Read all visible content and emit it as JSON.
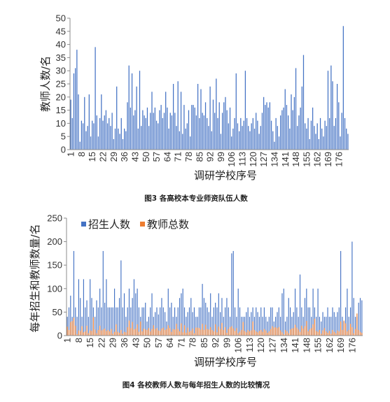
{
  "chart_data": [
    {
      "type": "bar",
      "caption": "图3 各高校本专业师资队伍人数",
      "xlabel": "调研学校序号",
      "ylabel": "教师人数/名",
      "ylim": [
        0,
        50
      ],
      "yticks": [
        0,
        5,
        10,
        15,
        20,
        25,
        30,
        35,
        40,
        45,
        50
      ],
      "xticks": [
        1,
        8,
        15,
        22,
        29,
        36,
        43,
        50,
        57,
        64,
        71,
        78,
        85,
        92,
        99,
        106,
        113,
        120,
        127,
        134,
        141,
        148,
        155,
        162,
        169,
        176
      ],
      "grid": false,
      "color": "#4472C4",
      "series": [
        {
          "values": [
            19,
            12,
            29,
            31,
            38,
            21,
            3,
            11,
            10,
            20,
            7,
            9,
            21,
            5,
            11,
            10,
            39,
            13,
            5,
            12,
            21,
            11,
            13,
            15,
            10,
            12,
            9,
            14,
            4,
            8,
            24,
            8,
            6,
            12,
            4,
            8,
            7,
            18,
            32,
            16,
            29,
            13,
            15,
            24,
            8,
            30,
            9,
            15,
            13,
            12,
            16,
            9,
            14,
            22,
            14,
            16,
            11,
            10,
            15,
            17,
            12,
            14,
            22,
            16,
            8,
            14,
            13,
            25,
            14,
            9,
            26,
            7,
            22,
            6,
            17,
            8,
            10,
            15,
            5,
            17,
            17,
            16,
            13,
            25,
            12,
            23,
            14,
            13,
            18,
            12,
            9,
            24,
            7,
            19,
            14,
            27,
            12,
            18,
            6,
            14,
            18,
            20,
            15,
            10,
            16,
            5,
            8,
            12,
            29,
            10,
            7,
            12,
            9,
            11,
            30,
            12,
            9,
            7,
            10,
            12,
            8,
            14,
            11,
            6,
            9,
            14,
            20,
            17,
            18,
            16,
            18,
            11,
            7,
            3,
            12,
            9,
            5,
            13,
            15,
            16,
            23,
            17,
            13,
            8,
            21,
            15,
            20,
            31,
            9,
            13,
            16,
            24,
            36,
            10,
            8,
            12,
            4,
            11,
            16,
            9,
            6,
            10,
            4,
            12,
            8,
            5,
            11,
            9,
            30,
            12,
            32,
            26,
            9,
            12,
            25,
            18,
            5,
            14,
            47,
            12,
            8,
            6
          ]
        }
      ]
    },
    {
      "type": "bar",
      "caption": "图4 各校教师人数与每年招生人数的比较情况",
      "xlabel": "调研学校序号",
      "ylabel": "每年招生和教师数量/名",
      "ylim": [
        0,
        250
      ],
      "yticks": [
        0,
        50,
        100,
        150,
        200,
        250
      ],
      "xticks": [
        1,
        8,
        15,
        22,
        29,
        36,
        43,
        50,
        57,
        64,
        71,
        78,
        85,
        92,
        99,
        106,
        113,
        120,
        127,
        134,
        141,
        148,
        155,
        162,
        169,
        176
      ],
      "grid": false,
      "legend": "top-left",
      "series": [
        {
          "name": "招生人数",
          "color": "#4472C4",
          "values": [
            40,
            60,
            85,
            40,
            180,
            60,
            40,
            120,
            80,
            40,
            120,
            60,
            75,
            40,
            120,
            80,
            60,
            40,
            75,
            60,
            100,
            60,
            180,
            70,
            120,
            60,
            60,
            60,
            60,
            100,
            60,
            60,
            80,
            160,
            60,
            90,
            40,
            60,
            100,
            60,
            80,
            120,
            90,
            100,
            60,
            40,
            60,
            60,
            70,
            30,
            40,
            60,
            90,
            40,
            50,
            60,
            45,
            60,
            80,
            60,
            50,
            30,
            100,
            60,
            70,
            40,
            60,
            40,
            60,
            80,
            90,
            100,
            60,
            40,
            50,
            60,
            80,
            50,
            60,
            40,
            40,
            60,
            60,
            110,
            80,
            70,
            60,
            50,
            90,
            40,
            60,
            70,
            60,
            90,
            50,
            80,
            40,
            60,
            80,
            60,
            40,
            175,
            180,
            60,
            40,
            100,
            60,
            40,
            40,
            40,
            50,
            60,
            40,
            50,
            60,
            40,
            60,
            50,
            40,
            60,
            40,
            60,
            40,
            30,
            40,
            60,
            60,
            30,
            40,
            50,
            60,
            40,
            90,
            100,
            30,
            40,
            80,
            60,
            40,
            50,
            100,
            60,
            40,
            130,
            60,
            40,
            80,
            100,
            60,
            60,
            40,
            100,
            60,
            40,
            100,
            40,
            30,
            50,
            40,
            40,
            60,
            40,
            40,
            60,
            50,
            40,
            50,
            60,
            180,
            40,
            30,
            60,
            100,
            40,
            60,
            200,
            80,
            40,
            40,
            70,
            80,
            75
          ]
        },
        {
          "name": "教师总数",
          "color": "#ED7D31",
          "values": [
            19,
            12,
            29,
            31,
            38,
            21,
            3,
            11,
            10,
            20,
            7,
            9,
            21,
            5,
            11,
            10,
            39,
            13,
            5,
            12,
            21,
            11,
            13,
            15,
            10,
            12,
            9,
            14,
            4,
            8,
            24,
            8,
            6,
            12,
            4,
            8,
            7,
            18,
            32,
            16,
            29,
            13,
            15,
            24,
            8,
            30,
            9,
            15,
            13,
            12,
            16,
            9,
            14,
            22,
            14,
            16,
            11,
            10,
            15,
            17,
            12,
            14,
            22,
            16,
            8,
            14,
            13,
            25,
            14,
            9,
            26,
            7,
            22,
            6,
            17,
            8,
            10,
            15,
            5,
            17,
            17,
            16,
            13,
            25,
            12,
            23,
            14,
            13,
            18,
            12,
            9,
            24,
            7,
            19,
            14,
            27,
            12,
            18,
            6,
            14,
            18,
            20,
            15,
            10,
            16,
            5,
            8,
            12,
            29,
            10,
            7,
            12,
            9,
            11,
            30,
            12,
            9,
            7,
            10,
            12,
            8,
            14,
            11,
            6,
            9,
            14,
            20,
            17,
            18,
            16,
            18,
            11,
            7,
            3,
            12,
            9,
            5,
            13,
            15,
            16,
            23,
            17,
            13,
            8,
            21,
            15,
            20,
            31,
            9,
            13,
            16,
            24,
            36,
            10,
            8,
            12,
            4,
            11,
            16,
            9,
            6,
            10,
            4,
            12,
            8,
            5,
            11,
            9,
            30,
            12,
            32,
            26,
            9,
            12,
            25,
            18,
            5,
            14,
            47,
            12,
            8,
            6
          ]
        }
      ]
    }
  ]
}
